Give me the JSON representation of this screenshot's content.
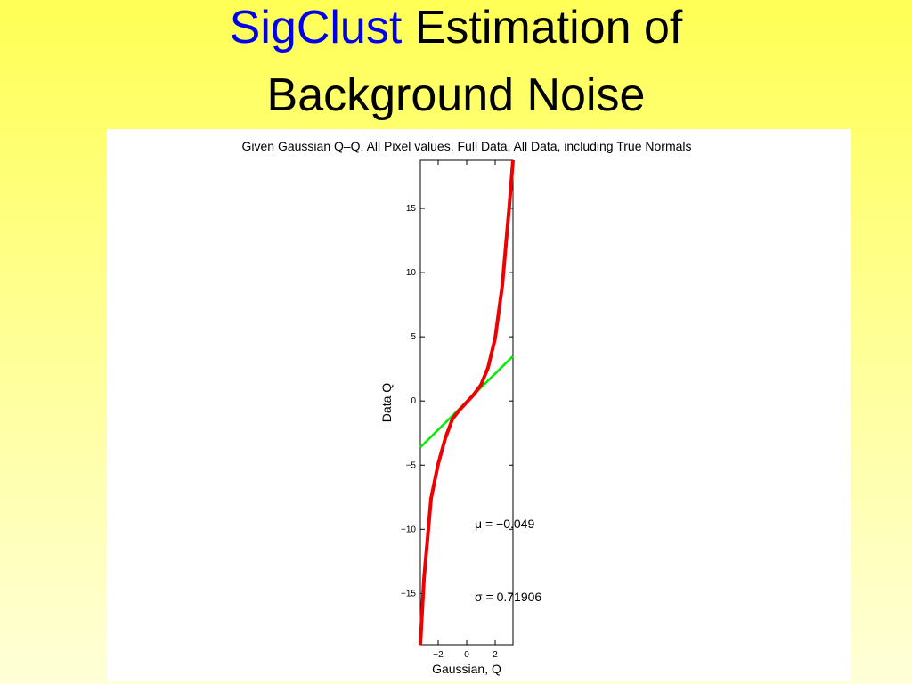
{
  "slide": {
    "title_highlight": "SigClust",
    "title_line1": "Estimation of",
    "title_line2": "Background Noise"
  },
  "chart_data": {
    "type": "line",
    "title": "Given Gaussian Q–Q, All Pixel values, Full Data, All Data, including True Normals",
    "xlabel": "Gaussian, Q",
    "ylabel": "Data Q",
    "xlim": [
      -3.25,
      3.25
    ],
    "ylim": [
      -19,
      18.75
    ],
    "xticks": [
      {
        "value": -2,
        "label": "−2"
      },
      0,
      2
    ],
    "yticks": [
      {
        "value": -15,
        "label": "−15"
      },
      {
        "value": -10,
        "label": "−10"
      },
      {
        "value": -5,
        "label": "−5"
      },
      0,
      5,
      10,
      15
    ],
    "series": [
      {
        "color": "#00ee00",
        "x": [
          -3.25,
          3.25
        ],
        "values": [
          -3.6,
          3.5
        ]
      },
      {
        "color": "#ee0000",
        "x": [
          -3.25,
          -3,
          -2.5,
          -2,
          -1.5,
          -1,
          -0.5,
          0,
          0.5,
          1,
          1.5,
          2,
          2.5,
          3,
          3.25
        ],
        "values": [
          -19,
          -13.9,
          -7.6,
          -4.9,
          -2.9,
          -1.4,
          -0.7,
          -0.1,
          0.5,
          1.25,
          2.6,
          4.9,
          9,
          15.3,
          18.75
        ]
      }
    ],
    "annotations": [
      "μ = −0.049",
      "σ = 0.71906"
    ]
  }
}
